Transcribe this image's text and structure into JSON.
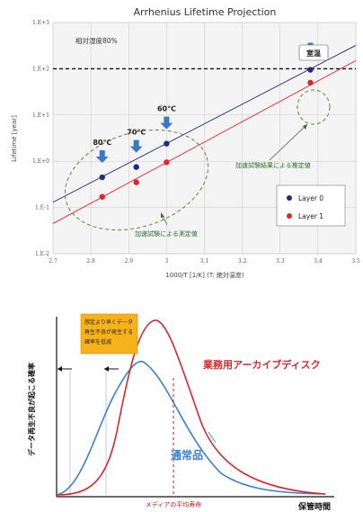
{
  "chart_data": [
    {
      "type": "scatter",
      "title": "Arrhenius Lifetime Projection",
      "xlabel": "1000/T [1/K] (T: 絶対温度)",
      "ylabel": "Lifetime [year]",
      "xlim": [
        2.7,
        3.5
      ],
      "ylim_log10": [
        -2,
        3
      ],
      "x_ticks": [
        "2.7",
        "2.8",
        "2.9",
        "3",
        "3.1",
        "3.2",
        "3.3",
        "3.4",
        "3.5"
      ],
      "y_ticks": [
        "1.E-2",
        "1.E-1",
        "1.E+0",
        "1.E+1",
        "1.E+2",
        "1.E+3"
      ],
      "condition_label": "相対湿度80%",
      "series": [
        {
          "name": "Layer 0",
          "color": "#1f2a7a",
          "x": [
            2.83,
            2.92,
            3.0,
            3.38
          ],
          "y": [
            0.45,
            0.75,
            2.4,
            95
          ],
          "fit_line": {
            "x": [
              2.7,
              3.5
            ],
            "y": [
              0.13,
              320
            ]
          }
        },
        {
          "name": "Layer 1",
          "color": "#e8212b",
          "x": [
            2.83,
            2.92,
            3.0,
            3.38
          ],
          "y": [
            0.17,
            0.35,
            0.95,
            50
          ],
          "fit_line": {
            "x": [
              2.7,
              3.5
            ],
            "y": [
              0.045,
              150
            ]
          }
        }
      ],
      "reference_line": {
        "y": 100,
        "style": "dashed"
      },
      "annotations": {
        "room_temp": "室温",
        "temps": [
          "80℃",
          "70℃",
          "60℃"
        ],
        "temp_x": [
          2.83,
          2.92,
          3.0
        ],
        "estimated": "加速試験結果による推定値",
        "measured": "加速試験による測定値"
      },
      "legend_placement": "bottom-right",
      "grid": true
    },
    {
      "type": "line",
      "ylabel": "データ再生不良が起こる確率",
      "xlabel": "保管時間",
      "series": [
        {
          "name": "業務用アーカイブディスク",
          "color": "#d9262c"
        },
        {
          "name": "通常品",
          "color": "#3a7fd0"
        }
      ],
      "mean_life_label": "メディアの平均寿命",
      "callout": "想定より早くデータ再生不良が発生する確率を低減"
    }
  ]
}
